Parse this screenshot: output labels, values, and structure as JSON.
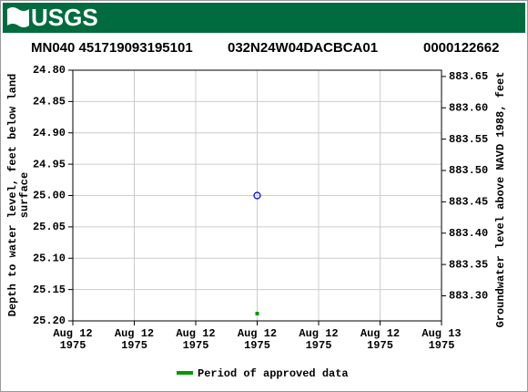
{
  "logo_text": "USGS",
  "chart_data": {
    "type": "scatter",
    "title_parts": [
      "MN040 451719093195101",
      "032N24W04DACBCA01",
      "0000122662"
    ],
    "ylabel_lines": [
      "Depth to water level, feet below land",
      "surface"
    ],
    "y2label": "Groundwater level above NAVD 1988, feet",
    "categories": [
      "Aug 12",
      "Aug 12",
      "Aug 12",
      "Aug 12",
      "Aug 12",
      "Aug 12",
      "Aug 13"
    ],
    "category_years": [
      "1975",
      "1975",
      "1975",
      "1975",
      "1975",
      "1975",
      "1975"
    ],
    "series": [
      {
        "name": "Period of approved data",
        "color": "#009900",
        "point_color": "#0000cc",
        "values": [
          null,
          null,
          null,
          25,
          null,
          null,
          null
        ]
      }
    ],
    "ylim": [
      24.8,
      25.2
    ],
    "yticks": [
      {
        "value": 24.8,
        "label": "24.80"
      },
      24.85,
      {
        "value": 24.9,
        "label": "24.90"
      },
      24.95,
      {
        "value": 25,
        "label": "25.00"
      },
      25.05,
      {
        "value": 25.1,
        "label": "25.10"
      },
      25.15,
      {
        "value": 25.2,
        "label": "25.20"
      }
    ],
    "y2lim": [
      883.66,
      883.26
    ],
    "y2ticks": [
      883.65,
      {
        "value": 883.6,
        "label": "883.60"
      },
      883.55,
      {
        "value": 883.5,
        "label": "883.50"
      },
      883.45,
      {
        "value": 883.4,
        "label": "883.40"
      },
      883.35,
      {
        "value": 883.3,
        "label": "883.30"
      }
    ],
    "grid": true,
    "legend": "bottom"
  }
}
